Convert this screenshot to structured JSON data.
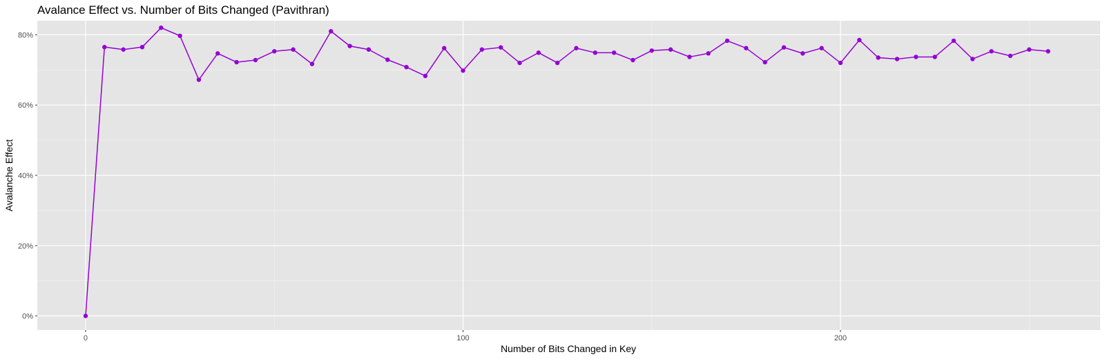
{
  "chart_data": {
    "type": "line",
    "title": "Avalance Effect vs. Number of Bits Changed (Pavithran)",
    "xlabel": "Number of Bits Changed in Key",
    "ylabel": "Avalanche Effect",
    "xlim": [
      -12.8,
      268.8
    ],
    "ylim": [
      -0.04,
      0.84
    ],
    "x_ticks": [
      0,
      100,
      200
    ],
    "x_tick_labels": [
      "0",
      "100",
      "200"
    ],
    "x_minor_ticks": [
      50,
      150,
      250
    ],
    "y_ticks": [
      0,
      0.2,
      0.4,
      0.6,
      0.8
    ],
    "y_tick_labels": [
      "0%",
      "20%",
      "40%",
      "60%",
      "80%"
    ],
    "y_minor_ticks": [
      0.1,
      0.3,
      0.5,
      0.7
    ],
    "grid": true,
    "legend": "none",
    "series": [
      {
        "color": "#9400D3",
        "x": [
          0,
          5,
          10,
          15,
          20,
          25,
          30,
          35,
          40,
          45,
          50,
          55,
          60,
          65,
          70,
          75,
          80,
          85,
          90,
          95,
          100,
          105,
          110,
          115,
          120,
          125,
          130,
          135,
          140,
          145,
          150,
          155,
          160,
          165,
          170,
          175,
          180,
          185,
          190,
          195,
          200,
          205,
          210,
          215,
          220,
          225,
          230,
          235,
          240,
          245,
          250,
          255
        ],
        "values": [
          0.0,
          0.765,
          0.758,
          0.765,
          0.82,
          0.797,
          0.672,
          0.747,
          0.722,
          0.728,
          0.753,
          0.758,
          0.717,
          0.81,
          0.768,
          0.758,
          0.729,
          0.708,
          0.683,
          0.762,
          0.698,
          0.758,
          0.764,
          0.72,
          0.749,
          0.72,
          0.762,
          0.749,
          0.749,
          0.728,
          0.755,
          0.758,
          0.737,
          0.747,
          0.783,
          0.762,
          0.722,
          0.764,
          0.747,
          0.762,
          0.72,
          0.785,
          0.735,
          0.731,
          0.737,
          0.737,
          0.783,
          0.731,
          0.753,
          0.74,
          0.758,
          0.753
        ]
      }
    ]
  }
}
